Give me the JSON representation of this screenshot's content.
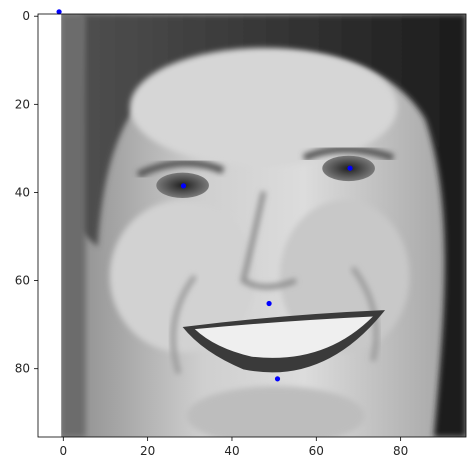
{
  "chart_data": {
    "type": "scatter",
    "title": "",
    "xlabel": "",
    "ylabel": "",
    "xlim": [
      -6,
      95.5
    ],
    "ylim": [
      95.5,
      -0.5
    ],
    "x_ticks": [
      0,
      20,
      40,
      60,
      80
    ],
    "y_ticks": [
      0,
      20,
      40,
      60,
      80
    ],
    "background": "grayscale face photograph (96×96 pixel image)",
    "points": [
      {
        "x": -1,
        "y": -1
      },
      {
        "x": 28.5,
        "y": 38.5
      },
      {
        "x": 68,
        "y": 34.5
      },
      {
        "x": 48.8,
        "y": 65.2
      },
      {
        "x": 50.8,
        "y": 82.3
      }
    ],
    "marker_color": "#0000ff",
    "grid": false
  }
}
